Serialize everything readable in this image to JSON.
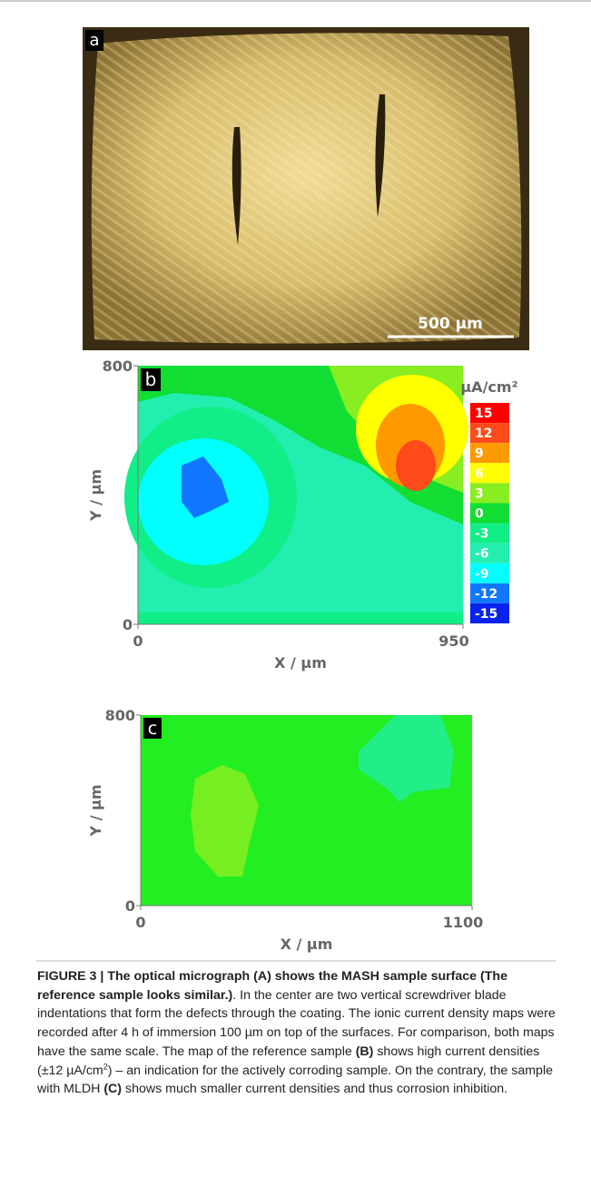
{
  "panels": [
    {
      "label": "a",
      "scale_bar": "500 µm"
    },
    {
      "label": "b",
      "x_label": "X / µm",
      "y_label": "Y / µm",
      "xticks": [
        0,
        950
      ],
      "yticks": [
        0,
        800
      ]
    },
    {
      "label": "c",
      "x_label": "X / µm",
      "y_label": "Y / µm",
      "xticks": [
        0,
        1100
      ],
      "yticks": [
        0,
        800
      ]
    }
  ],
  "colorbar": {
    "unit": "µA/cm²",
    "levels": [
      {
        "value": 15,
        "color": "#ff0000"
      },
      {
        "value": 12,
        "color": "#ff4a1a"
      },
      {
        "value": 9,
        "color": "#ff9900"
      },
      {
        "value": 6,
        "color": "#ffff00"
      },
      {
        "value": 3,
        "color": "#88ee22"
      },
      {
        "value": 0,
        "color": "#11dd33"
      },
      {
        "value": -3,
        "color": "#11ee88"
      },
      {
        "value": -6,
        "color": "#22eeb0"
      },
      {
        "value": -9,
        "color": "#00ffff"
      },
      {
        "value": -12,
        "color": "#1177ff"
      },
      {
        "value": -15,
        "color": "#0a22ee"
      }
    ]
  },
  "caption": [
    {
      "text": "FIGURE 3 | The optical micrograph (A) shows the MASH sample surface (The reference sample looks similar.)",
      "style": "bold"
    },
    {
      "text": ". In the center are two vertical screwdriver blade indentations that form the defects through the coating. The ionic current density maps were recorded after 4 h of immersion 100 µm on top of the surfaces. For comparison, both maps have the same scale. The map of the reference sample ",
      "style": "normal"
    },
    {
      "text": "(B)",
      "style": "bold"
    },
    {
      "text": " shows high current densities (±12 µA/cm",
      "style": "normal"
    },
    {
      "text": "2",
      "style": "sup"
    },
    {
      "text": ") – an indication for the actively corroding sample. On the contrary, the sample with MLDH ",
      "style": "normal"
    },
    {
      "text": "(C)",
      "style": "bold"
    },
    {
      "text": " shows much smaller current densities and thus corrosion inhibition.",
      "style": "normal"
    }
  ]
}
